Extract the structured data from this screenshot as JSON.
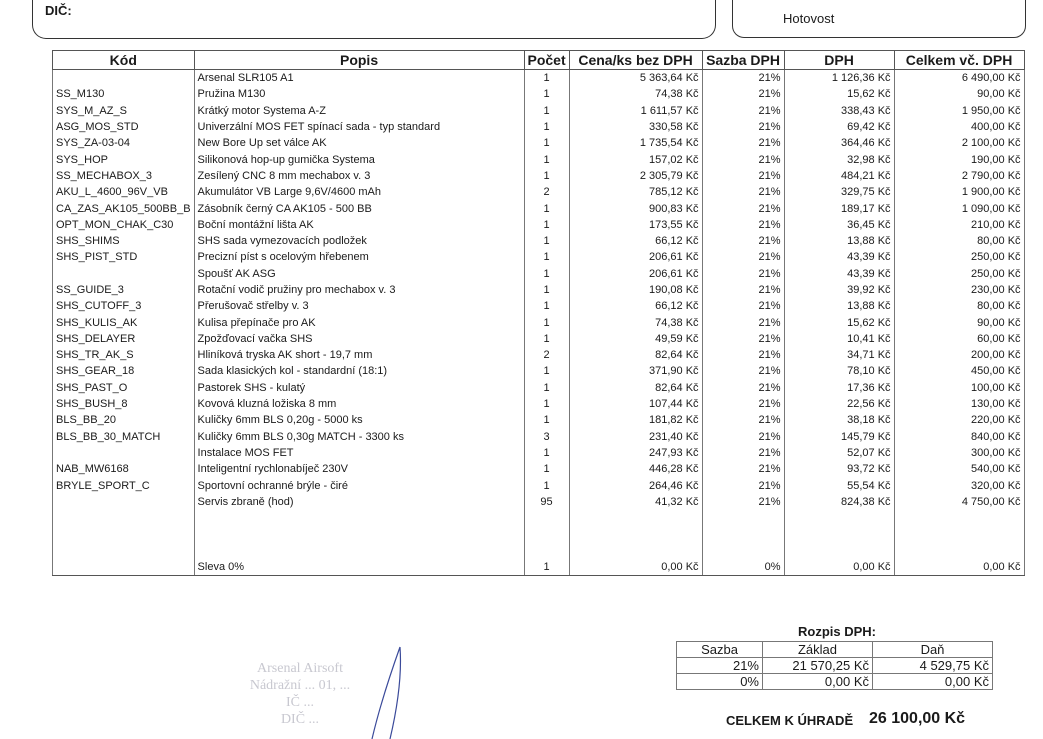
{
  "header": {
    "dic_label": "DIČ:",
    "payment_method": "Hotovost"
  },
  "table": {
    "columns": [
      "Kód",
      "Popis",
      "Počet",
      "Cena/ks bez DPH",
      "Sazba DPH",
      "DPH",
      "Celkem vč. DPH"
    ],
    "rows": [
      [
        "",
        "Arsenal SLR105 A1",
        "1",
        "5 363,64 Kč",
        "21%",
        "1 126,36 Kč",
        "6 490,00 Kč"
      ],
      [
        "SS_M130",
        "Pružina M130",
        "1",
        "74,38 Kč",
        "21%",
        "15,62 Kč",
        "90,00 Kč"
      ],
      [
        "SYS_M_AZ_S",
        "Krátký motor Systema A-Z",
        "1",
        "1 611,57 Kč",
        "21%",
        "338,43 Kč",
        "1 950,00 Kč"
      ],
      [
        "ASG_MOS_STD",
        "Univerzální MOS FET spínací sada - typ standard",
        "1",
        "330,58 Kč",
        "21%",
        "69,42 Kč",
        "400,00 Kč"
      ],
      [
        "SYS_ZA-03-04",
        "New Bore Up set válce AK",
        "1",
        "1 735,54 Kč",
        "21%",
        "364,46 Kč",
        "2 100,00 Kč"
      ],
      [
        "SYS_HOP",
        "Silikonová hop-up gumička Systema",
        "1",
        "157,02 Kč",
        "21%",
        "32,98 Kč",
        "190,00 Kč"
      ],
      [
        "SS_MECHABOX_3",
        "Zesílený CNC 8 mm mechabox v. 3",
        "1",
        "2 305,79 Kč",
        "21%",
        "484,21 Kč",
        "2 790,00 Kč"
      ],
      [
        "AKU_L_4600_96V_VB",
        "Akumulátor VB Large 9,6V/4600 mAh",
        "2",
        "785,12 Kč",
        "21%",
        "329,75 Kč",
        "1 900,00 Kč"
      ],
      [
        "CA_ZAS_AK105_500BB_B",
        "Zásobník černý CA AK105 - 500 BB",
        "1",
        "900,83 Kč",
        "21%",
        "189,17 Kč",
        "1 090,00 Kč"
      ],
      [
        "OPT_MON_CHAK_C30",
        "Boční montážní lišta AK",
        "1",
        "173,55 Kč",
        "21%",
        "36,45 Kč",
        "210,00 Kč"
      ],
      [
        "SHS_SHIMS",
        "SHS sada vymezovacích podložek",
        "1",
        "66,12 Kč",
        "21%",
        "13,88 Kč",
        "80,00 Kč"
      ],
      [
        "SHS_PIST_STD",
        "Precizní píst s ocelovým hřebenem",
        "1",
        "206,61 Kč",
        "21%",
        "43,39 Kč",
        "250,00 Kč"
      ],
      [
        "",
        "Spoušť AK ASG",
        "1",
        "206,61 Kč",
        "21%",
        "43,39 Kč",
        "250,00 Kč"
      ],
      [
        "SS_GUIDE_3",
        "Rotační vodič pružiny pro mechabox v. 3",
        "1",
        "190,08 Kč",
        "21%",
        "39,92 Kč",
        "230,00 Kč"
      ],
      [
        "SHS_CUTOFF_3",
        "Přerušovač střelby v. 3",
        "1",
        "66,12 Kč",
        "21%",
        "13,88 Kč",
        "80,00 Kč"
      ],
      [
        "SHS_KULIS_AK",
        "Kulisa přepínače pro AK",
        "1",
        "74,38 Kč",
        "21%",
        "15,62 Kč",
        "90,00 Kč"
      ],
      [
        "SHS_DELAYER",
        "Zpožďovací vačka SHS",
        "1",
        "49,59 Kč",
        "21%",
        "10,41 Kč",
        "60,00 Kč"
      ],
      [
        "SHS_TR_AK_S",
        "Hliníková tryska AK short - 19,7 mm",
        "2",
        "82,64 Kč",
        "21%",
        "34,71 Kč",
        "200,00 Kč"
      ],
      [
        "SHS_GEAR_18",
        "Sada klasických kol - standardní (18:1)",
        "1",
        "371,90 Kč",
        "21%",
        "78,10 Kč",
        "450,00 Kč"
      ],
      [
        "SHS_PAST_O",
        "Pastorek SHS - kulatý",
        "1",
        "82,64 Kč",
        "21%",
        "17,36 Kč",
        "100,00 Kč"
      ],
      [
        "SHS_BUSH_8",
        "Kovová kluzná ložiska 8 mm",
        "1",
        "107,44 Kč",
        "21%",
        "22,56 Kč",
        "130,00 Kč"
      ],
      [
        "BLS_BB_20",
        "Kuličky 6mm BLS 0,20g - 5000 ks",
        "1",
        "181,82 Kč",
        "21%",
        "38,18 Kč",
        "220,00 Kč"
      ],
      [
        "BLS_BB_30_MATCH",
        "Kuličky 6mm BLS 0,30g MATCH - 3300 ks",
        "3",
        "231,40 Kč",
        "21%",
        "145,79 Kč",
        "840,00 Kč"
      ],
      [
        "",
        "Instalace MOS FET",
        "1",
        "247,93 Kč",
        "21%",
        "52,07 Kč",
        "300,00 Kč"
      ],
      [
        "NAB_MW6168",
        "Inteligentní rychlonabíječ 230V",
        "1",
        "446,28 Kč",
        "21%",
        "93,72 Kč",
        "540,00 Kč"
      ],
      [
        "BRYLE_SPORT_C",
        "Sportovní ochranné brýle - čiré",
        "1",
        "264,46 Kč",
        "21%",
        "55,54 Kč",
        "320,00 Kč"
      ],
      [
        "",
        "Servis zbraně (hod)",
        "95",
        "41,32 Kč",
        "21%",
        "824,38 Kč",
        "4 750,00 Kč"
      ]
    ],
    "discount_row": [
      "",
      "Sleva 0%",
      "1",
      "0,00 Kč",
      "0%",
      "0,00 Kč",
      "0,00 Kč"
    ]
  },
  "vat_summary": {
    "title": "Rozpis DPH:",
    "columns": [
      "Sazba",
      "Základ",
      "Daň"
    ],
    "rows": [
      [
        "21%",
        "21 570,25 Kč",
        "4 529,75 Kč"
      ],
      [
        "0%",
        "0,00 Kč",
        "0,00 Kč"
      ]
    ]
  },
  "total": {
    "label": "CELKEM K ÚHRADĚ",
    "value": "26 100,00 Kč"
  },
  "stamp": {
    "lines": [
      "Arsenal Airsoft",
      "Nádražní ... 01, ...",
      "IČ ...",
      "DIČ ..."
    ]
  }
}
